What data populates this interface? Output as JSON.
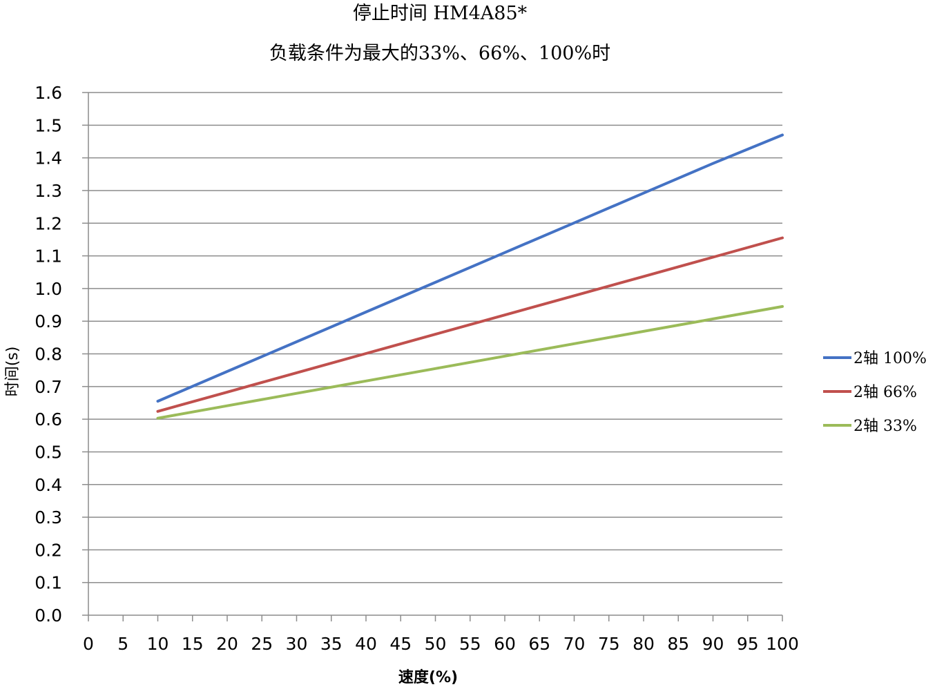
{
  "chart_data": {
    "type": "line",
    "title": "停止时间 HM4A85*",
    "subtitle": "负载条件为最大的33%、66%、100%时",
    "xlabel": "速度(%)",
    "ylabel": "时间(s)",
    "x": [
      10,
      20,
      30,
      40,
      50,
      60,
      70,
      80,
      90,
      100
    ],
    "xlim": [
      0,
      100
    ],
    "ylim": [
      0.0,
      1.6
    ],
    "xticks": [
      "0",
      "5",
      "10",
      "15",
      "20",
      "25",
      "30",
      "35",
      "40",
      "45",
      "50",
      "55",
      "60",
      "65",
      "70",
      "75",
      "80",
      "85",
      "90",
      "95",
      "100"
    ],
    "yticks": [
      "0.0",
      "0.1",
      "0.2",
      "0.3",
      "0.4",
      "0.5",
      "0.6",
      "0.7",
      "0.8",
      "0.9",
      "1.0",
      "1.1",
      "1.2",
      "1.3",
      "1.4",
      "1.5",
      "1.6"
    ],
    "grid": true,
    "legend_position": "right",
    "series": [
      {
        "name": "2轴 100%",
        "color": "#4472C4",
        "values": [
          0.655,
          0.746,
          0.837,
          0.928,
          1.019,
          1.11,
          1.201,
          1.292,
          1.383,
          1.47
        ]
      },
      {
        "name": "2轴 66%",
        "color": "#C0504D",
        "values": [
          0.624,
          0.683,
          0.742,
          0.801,
          0.86,
          0.919,
          0.978,
          1.037,
          1.096,
          1.155
        ]
      },
      {
        "name": "2轴 33%",
        "color": "#9BBB59",
        "values": [
          0.603,
          0.641,
          0.679,
          0.717,
          0.755,
          0.793,
          0.831,
          0.869,
          0.907,
          0.945
        ]
      }
    ]
  }
}
